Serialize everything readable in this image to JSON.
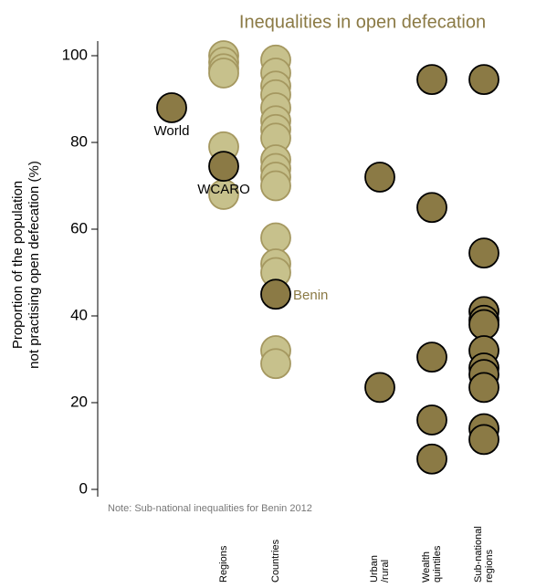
{
  "chart_data": {
    "type": "dot",
    "title": "Inequalities in open defecation",
    "ylabel": [
      "Proportion of the population",
      "not practising open defecation (%)"
    ],
    "note": "Note: Sub-national inequalities for Benin  2012",
    "categories": [
      null,
      [
        "Regions"
      ],
      [
        "Countries"
      ],
      null,
      [
        "Urban",
        "/rural"
      ],
      [
        "Wealth",
        "quintiles"
      ],
      [
        "Sub-national",
        "regions"
      ]
    ],
    "ylim": [
      0,
      100
    ],
    "yticks": [
      0,
      20,
      40,
      60,
      80,
      100
    ],
    "series": [
      {
        "color": "#c7c18c",
        "edge": "#a59860",
        "values": [
          [],
          [
            100,
            98.5,
            97,
            96,
            79,
            68
          ],
          [
            99,
            96,
            93,
            91,
            88,
            85,
            83,
            81,
            76,
            74,
            72,
            70,
            58,
            52,
            50,
            32,
            29
          ],
          [],
          [],
          [],
          []
        ]
      },
      {
        "color": "#8b7a45",
        "edge": "#000000",
        "values": [
          [
            88
          ],
          [
            74.5
          ],
          [
            45
          ],
          [],
          [
            72,
            23.5
          ],
          [
            94.5,
            65,
            30.5,
            16,
            7
          ],
          [
            94.5,
            54.5,
            41,
            39,
            38,
            32,
            28,
            26.5,
            23.5,
            14,
            11.5
          ]
        ]
      }
    ],
    "annotations": [
      {
        "text": "World",
        "color": "#000000"
      },
      {
        "text": "WCARO",
        "color": "#000000"
      },
      {
        "text": "Benin",
        "color": "#8b7a45"
      }
    ]
  }
}
